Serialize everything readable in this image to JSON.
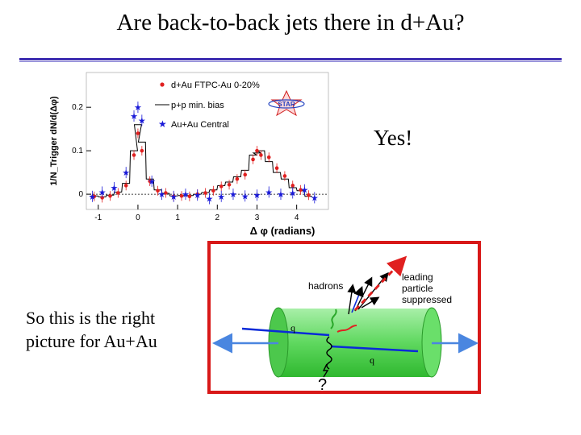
{
  "slide": {
    "title": "Are back-to-back jets there in d+Au?",
    "answer": "Yes!",
    "caption_lines": [
      "So this is the right",
      "picture for Au+Au"
    ]
  },
  "chart_data": {
    "type": "scatter",
    "ylabel": "1/N_Trigger dN/d(Δφ)",
    "xlabel": "Δ φ (radians)",
    "xlim": [
      -1.3,
      4.8
    ],
    "ylim": [
      -0.035,
      0.28
    ],
    "xticks": [
      "-1",
      "0",
      "1",
      "2",
      "3",
      "4"
    ],
    "yticks": [
      "0",
      "0.1",
      "0.2"
    ],
    "logo": "STAR",
    "legend": [
      {
        "label": "d+Au FTPC-Au 0-20%",
        "marker": "circle",
        "color": "#e02020"
      },
      {
        "label": "p+p min. bias",
        "marker": "line",
        "color": "#000000"
      },
      {
        "label": "Au+Au Central",
        "marker": "star",
        "color": "#1a1ad8"
      }
    ],
    "series": [
      {
        "name": "d+Au FTPC-Au 0-20%",
        "x": [
          -1.1,
          -0.9,
          -0.7,
          -0.5,
          -0.3,
          -0.1,
          0.0,
          0.1,
          0.3,
          0.5,
          0.7,
          0.9,
          1.1,
          1.3,
          1.5,
          1.7,
          1.9,
          2.1,
          2.3,
          2.5,
          2.7,
          2.9,
          3.0,
          3.1,
          3.3,
          3.5,
          3.7,
          3.9,
          4.1,
          4.3
        ],
        "y": [
          -0.005,
          -0.008,
          -0.004,
          0.003,
          0.02,
          0.09,
          0.14,
          0.1,
          0.03,
          0.008,
          0.003,
          -0.005,
          -0.004,
          -0.005,
          0.0,
          0.003,
          0.008,
          0.018,
          0.022,
          0.035,
          0.045,
          0.08,
          0.1,
          0.09,
          0.085,
          0.06,
          0.042,
          0.02,
          0.01,
          -0.002
        ]
      },
      {
        "name": "p+p min. bias",
        "x": [
          -1.1,
          -0.9,
          -0.7,
          -0.5,
          -0.3,
          -0.1,
          0.0,
          0.1,
          0.3,
          0.5,
          0.7,
          0.9,
          1.1,
          1.3,
          1.5,
          1.7,
          1.9,
          2.1,
          2.3,
          2.5,
          2.7,
          2.9,
          3.0,
          3.1,
          3.3,
          3.5,
          3.7,
          3.9,
          4.1,
          4.3
        ],
        "y": [
          -0.004,
          -0.006,
          -0.002,
          0.005,
          0.025,
          0.1,
          0.16,
          0.12,
          0.035,
          0.01,
          0.002,
          -0.004,
          -0.003,
          -0.003,
          0.0,
          0.004,
          0.01,
          0.02,
          0.028,
          0.04,
          0.055,
          0.09,
          0.095,
          0.1,
          0.075,
          0.05,
          0.035,
          0.015,
          0.008,
          -0.005
        ]
      },
      {
        "name": "Au+Au Central",
        "x": [
          -1.15,
          -0.9,
          -0.6,
          -0.3,
          -0.1,
          0.0,
          0.1,
          0.35,
          0.6,
          0.9,
          1.2,
          1.5,
          1.8,
          2.1,
          2.4,
          2.7,
          3.0,
          3.3,
          3.6,
          3.9,
          4.2,
          4.45
        ],
        "y": [
          -0.005,
          0.005,
          0.015,
          0.05,
          0.18,
          0.2,
          0.17,
          0.03,
          0.0,
          -0.005,
          0.0,
          -0.002,
          -0.01,
          -0.005,
          0.0,
          -0.004,
          -0.002,
          0.005,
          0.0,
          0.003,
          0.01,
          -0.008
        ]
      }
    ]
  },
  "diagram": {
    "labels": {
      "hadrons": "hadrons",
      "leading": [
        "leading",
        "particle",
        "suppressed"
      ],
      "q_left": "q",
      "q_right": "q",
      "unknown": "?"
    },
    "colors": {
      "border": "#d81818",
      "medium": "#5fd85f",
      "arrow": "#4a86e0",
      "quark": "#0a2ad8",
      "gluon": "#e02020"
    }
  }
}
